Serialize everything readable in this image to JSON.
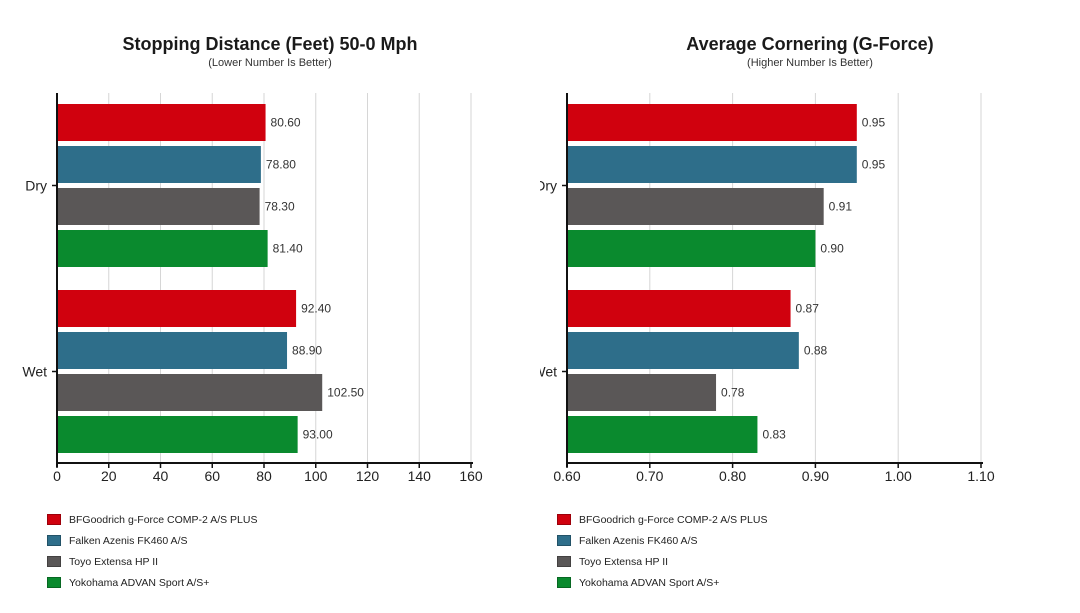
{
  "colors": {
    "bfgoodrich": "#d0010e",
    "falken": "#2e6e8a",
    "toyo": "#5a5757",
    "yokohama": "#0a8a2e"
  },
  "legend": [
    {
      "label": "BFGoodrich g-Force COMP-2 A/S PLUS",
      "color_key": "bfgoodrich"
    },
    {
      "label": "Falken Azenis FK460 A/S",
      "color_key": "falken"
    },
    {
      "label": "Toyo Extensa HP II",
      "color_key": "toyo"
    },
    {
      "label": "Yokohama ADVAN Sport A/S+",
      "color_key": "yokohama"
    }
  ],
  "chart_data": [
    {
      "type": "bar",
      "orientation": "horizontal",
      "title": "Stopping Distance (Feet) 50-0 Mph",
      "subtitle": "(Lower Number Is Better)",
      "categories": [
        "Dry",
        "Wet"
      ],
      "series": [
        {
          "name": "BFGoodrich g-Force COMP-2 A/S PLUS",
          "values": [
            80.6,
            92.4
          ],
          "labels": [
            "80.60",
            "92.40"
          ]
        },
        {
          "name": "Falken Azenis FK460 A/S",
          "values": [
            78.8,
            88.9
          ],
          "labels": [
            "78.80",
            "88.90"
          ]
        },
        {
          "name": "Toyo Extensa HP II",
          "values": [
            78.3,
            102.5
          ],
          "labels": [
            "78.30",
            "102.50"
          ]
        },
        {
          "name": "Yokohama ADVAN Sport A/S+",
          "values": [
            81.4,
            93.0
          ],
          "labels": [
            "81.40",
            "93.00"
          ]
        }
      ],
      "xlim": [
        0,
        160
      ],
      "xticks": [
        0,
        20,
        40,
        60,
        80,
        100,
        120,
        140,
        160
      ],
      "xtick_labels": [
        "0",
        "20",
        "40",
        "60",
        "80",
        "100",
        "120",
        "140",
        "160"
      ],
      "grid": true,
      "legend_position": "bottom-left"
    },
    {
      "type": "bar",
      "orientation": "horizontal",
      "title": "Average Cornering (G-Force)",
      "subtitle": "(Higher Number Is Better)",
      "categories": [
        "Dry",
        "Wet"
      ],
      "series": [
        {
          "name": "BFGoodrich g-Force COMP-2 A/S PLUS",
          "values": [
            0.95,
            0.87
          ],
          "labels": [
            "0.95",
            "0.87"
          ]
        },
        {
          "name": "Falken Azenis FK460 A/S",
          "values": [
            0.95,
            0.88
          ],
          "labels": [
            "0.95",
            "0.88"
          ]
        },
        {
          "name": "Toyo Extensa HP II",
          "values": [
            0.91,
            0.78
          ],
          "labels": [
            "0.91",
            "0.78"
          ]
        },
        {
          "name": "Yokohama ADVAN Sport A/S+",
          "values": [
            0.9,
            0.83
          ],
          "labels": [
            "0.90",
            "0.83"
          ]
        }
      ],
      "xlim": [
        0.6,
        1.1
      ],
      "xticks": [
        0.6,
        0.7,
        0.8,
        0.9,
        1.0,
        1.1
      ],
      "xtick_labels": [
        "0.60",
        "0.70",
        "0.80",
        "0.90",
        "1.00",
        "1.10"
      ],
      "grid": true,
      "legend_position": "bottom-left"
    }
  ]
}
